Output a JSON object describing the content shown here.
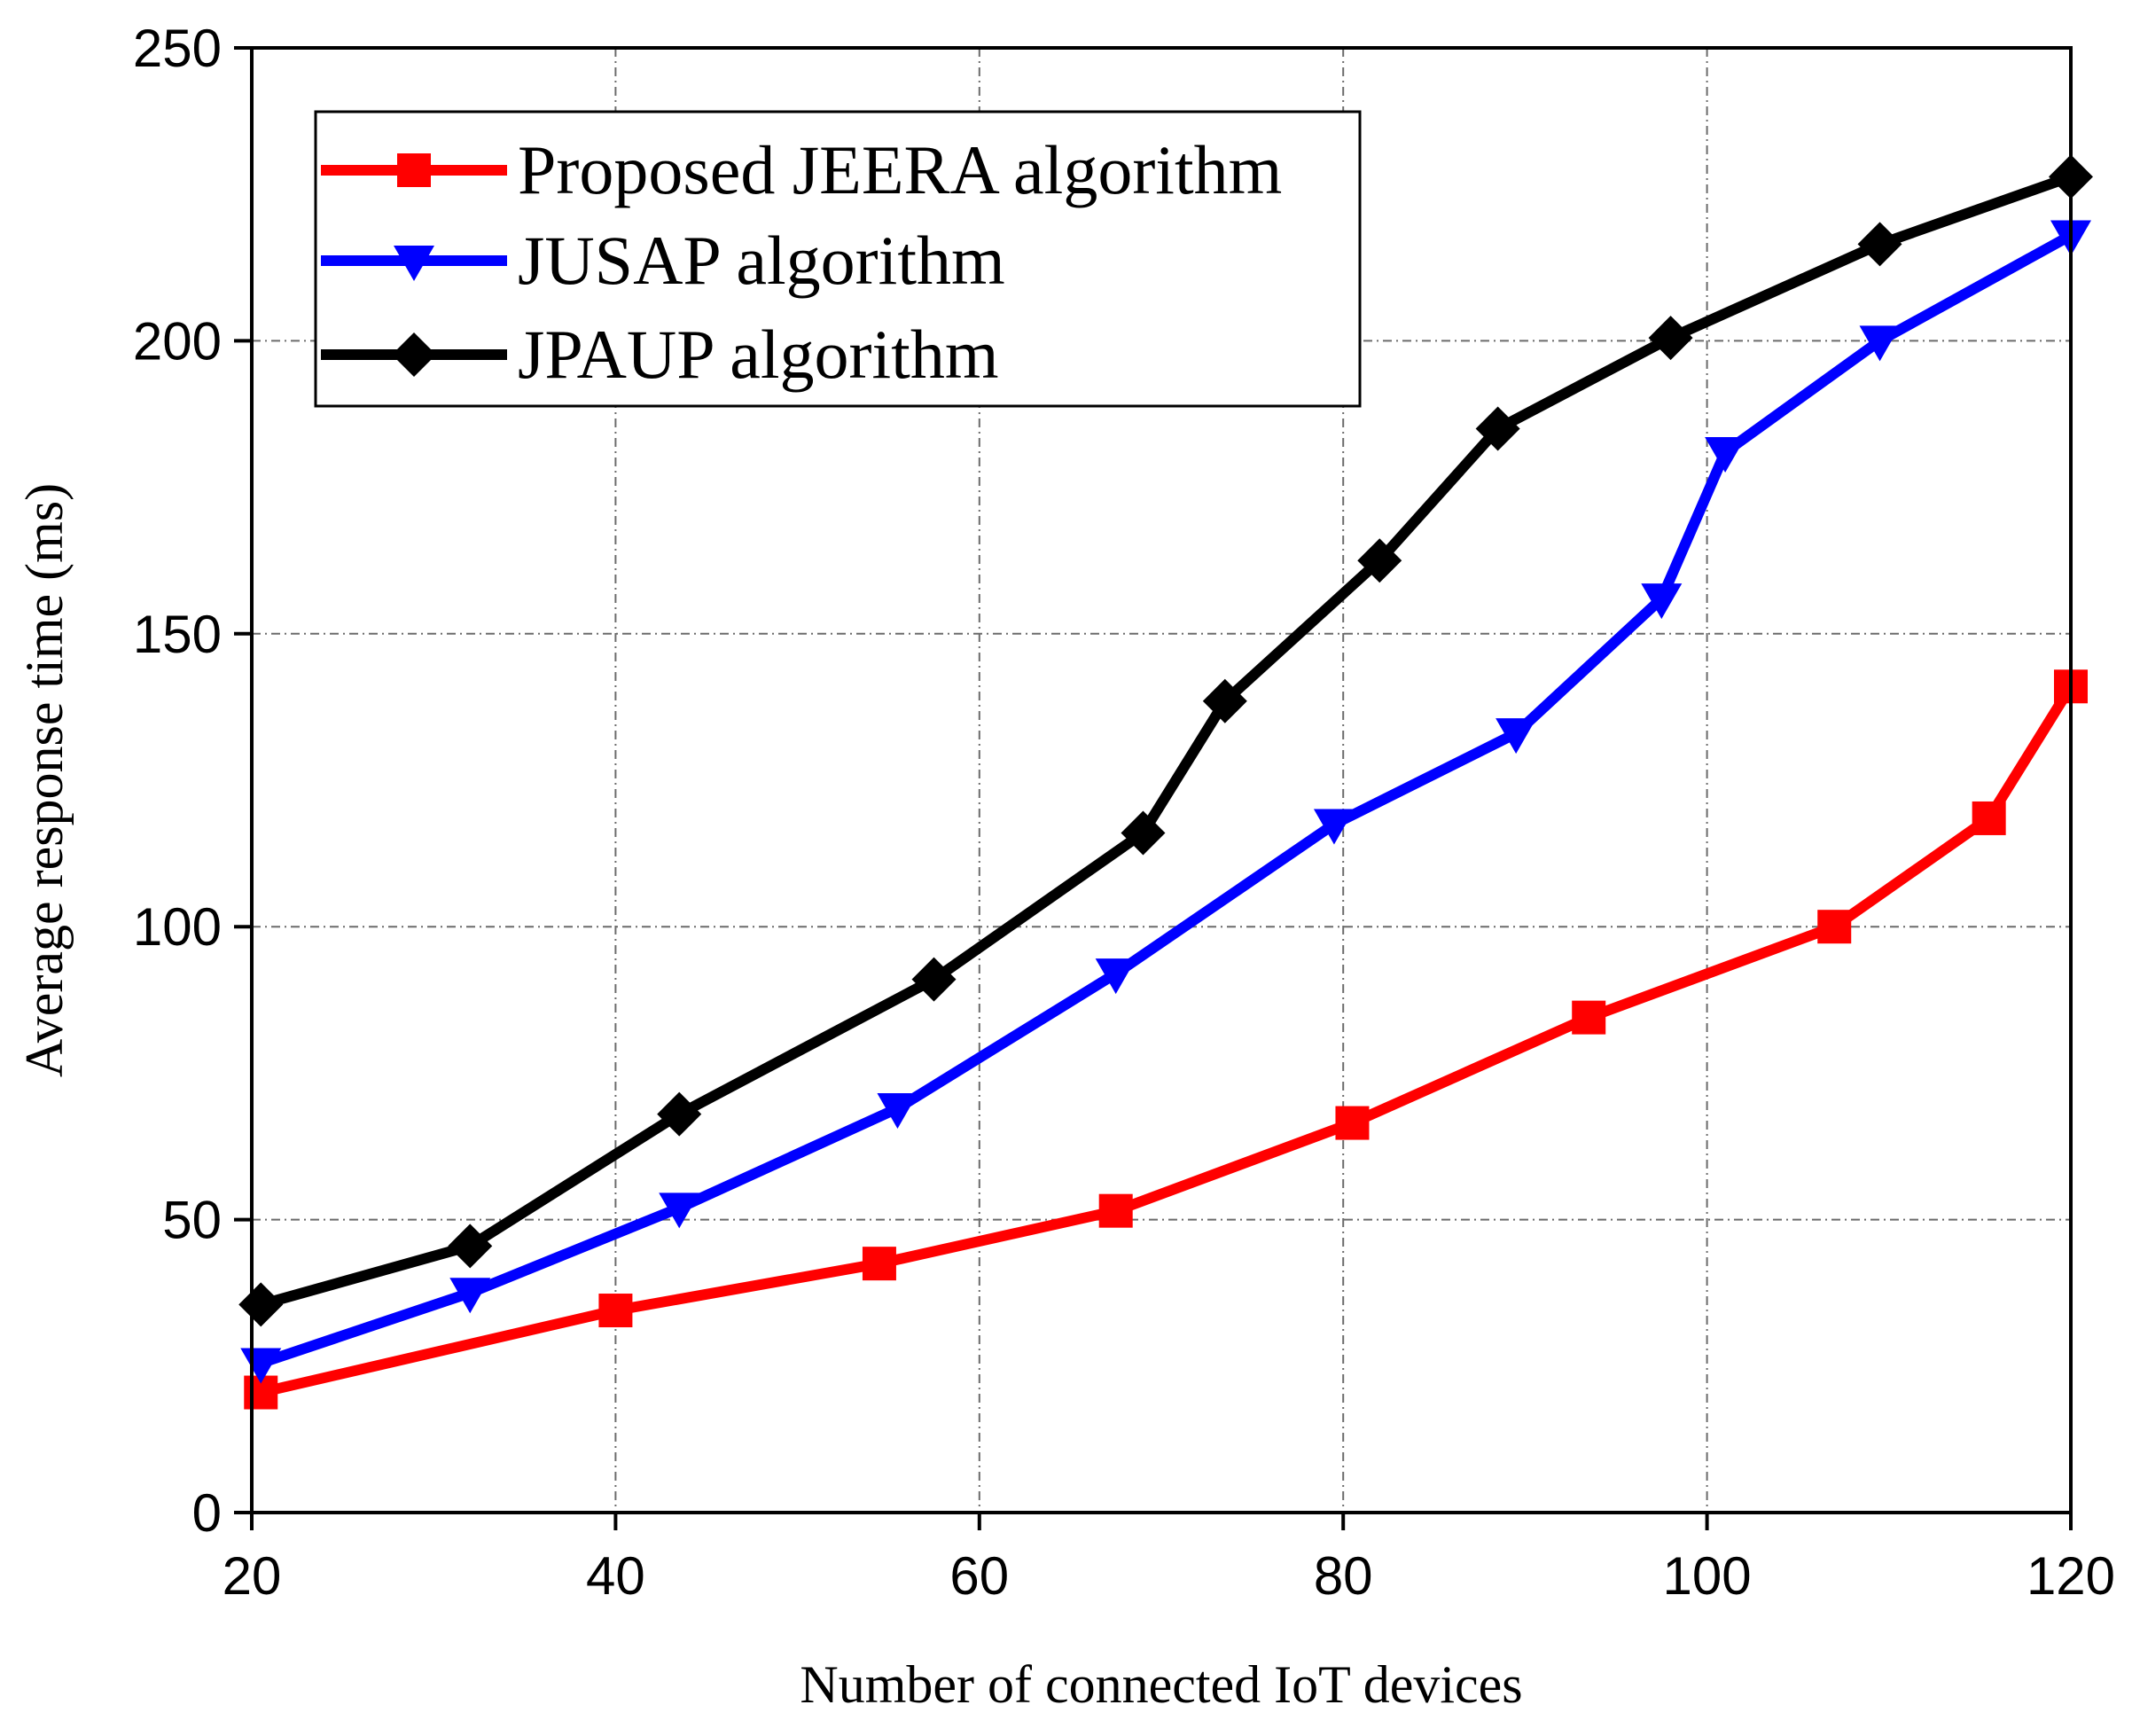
{
  "chart_data": {
    "type": "line",
    "title": "",
    "xlabel": "Number of connected IoT devices",
    "ylabel": "Average response time (ms)",
    "xlim": [
      20,
      120
    ],
    "ylim": [
      0,
      250
    ],
    "xticks": [
      20,
      40,
      60,
      80,
      100,
      120
    ],
    "yticks": [
      0,
      50,
      100,
      150,
      200,
      250
    ],
    "grid": true,
    "legend_position": "top-left",
    "series": [
      {
        "name": "Proposed JEERA algorithm",
        "color": "#ff0000",
        "marker": "square",
        "x": [
          20.5,
          40,
          54.5,
          67.5,
          80.5,
          93.5,
          107,
          115.5,
          120
        ],
        "y": [
          20.5,
          34.5,
          42.5,
          51.5,
          66.5,
          84.5,
          100,
          118.5,
          141
        ]
      },
      {
        "name": "JUSAP algorithm",
        "color": "#0000ff",
        "marker": "triangle-down",
        "x": [
          20.5,
          32,
          43.5,
          55.5,
          67.5,
          79.5,
          89.5,
          97.5,
          101,
          109.5,
          120
        ],
        "y": [
          25.5,
          37.5,
          52,
          69,
          92,
          117.5,
          133,
          156,
          181,
          200,
          218
        ]
      },
      {
        "name": "JPAUP algorithm",
        "color": "#000000",
        "marker": "diamond",
        "x": [
          20.5,
          32,
          43.5,
          57.5,
          69,
          73.5,
          82,
          88.5,
          98,
          109.5,
          120
        ],
        "y": [
          35.5,
          45.5,
          68,
          91,
          116,
          138.5,
          162.5,
          185,
          200.5,
          216.5,
          228
        ]
      }
    ]
  }
}
